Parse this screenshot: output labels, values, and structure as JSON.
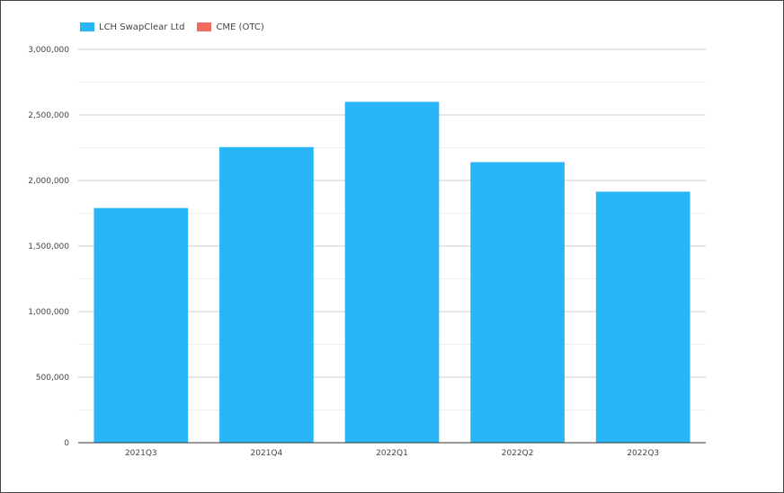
{
  "colors": {
    "lch": "#29b6f6",
    "cme": "#ef6c5e",
    "grid": "#cccccc",
    "minor_grid": "#eeeeee",
    "axis": "#333333"
  },
  "legend": [
    {
      "label": "LCH SwapClear Ltd",
      "color": "#29b6f6"
    },
    {
      "label": "CME (OTC)",
      "color": "#ef6c5e"
    }
  ],
  "chart_data": {
    "type": "bar",
    "categories": [
      "2021Q3",
      "2021Q4",
      "2022Q1",
      "2022Q2",
      "2022Q3"
    ],
    "series": [
      {
        "name": "LCH SwapClear Ltd",
        "values": [
          1790000,
          2255000,
          2600000,
          2140000,
          1915000
        ]
      },
      {
        "name": "CME (OTC)",
        "values": [
          0,
          0,
          0,
          0,
          0
        ]
      }
    ],
    "ylim": [
      0,
      3000000
    ],
    "yticks": [
      0,
      500000,
      1000000,
      1500000,
      2000000,
      2500000,
      3000000
    ],
    "ytick_labels": [
      "0",
      "500,000",
      "1,000,000",
      "1,500,000",
      "2,000,000",
      "2,500,000",
      "3,000,000"
    ],
    "grid": true,
    "stacked": true,
    "legend_position": "top-left",
    "title": "",
    "xlabel": "",
    "ylabel": ""
  }
}
